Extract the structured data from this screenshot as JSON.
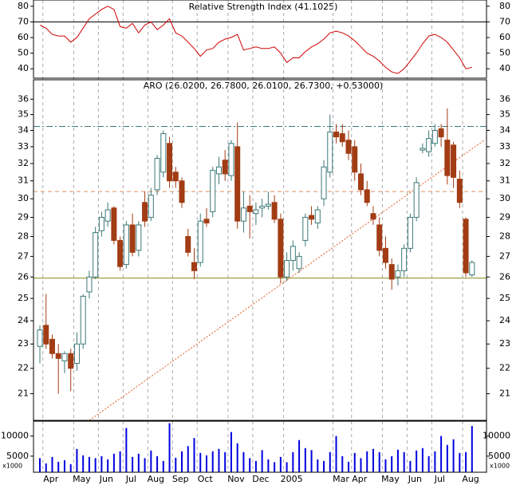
{
  "chart_data": [
    {
      "type": "line",
      "title": "Relative Strength Index (41.1025)",
      "series": [
        {
          "name": "RSI",
          "color": "#d00000",
          "values": [
            68,
            66,
            62,
            61,
            61,
            57,
            60,
            66,
            72,
            75,
            78,
            80,
            78,
            67,
            66,
            69,
            63,
            68,
            70,
            65,
            68,
            72,
            63,
            61,
            57,
            53,
            48,
            52,
            53,
            57,
            59,
            60,
            62,
            52,
            53,
            54,
            53,
            53,
            54,
            50,
            44,
            47,
            47,
            51,
            54,
            56,
            59,
            63,
            64,
            63,
            61,
            58,
            54,
            50,
            48,
            45,
            41,
            38,
            37,
            40,
            45,
            50,
            56,
            61,
            62,
            60,
            57,
            52,
            47,
            40,
            41
          ]
        }
      ],
      "ylim": [
        34,
        84
      ],
      "yticks": [
        40,
        50,
        60,
        70,
        80
      ],
      "hlines": [
        70
      ]
    },
    {
      "type": "candlestick",
      "title": "ARO (26.0200, 26.7800, 26.0100, 26.7300, +0.53000)",
      "up_color": "#3c7878",
      "down_color": "#a23c14",
      "ylog": true,
      "open": [
        22.9,
        23.8,
        23.2,
        22.6,
        22.3,
        22.6,
        22.2,
        23.0,
        25.3,
        26.0,
        28.3,
        28.8,
        29.5,
        27.8,
        26.6,
        28.6,
        27.3,
        29.8,
        29.0,
        30.5,
        31.5,
        33.2,
        31.5,
        31.0,
        28.0,
        26.7,
        26.7,
        28.9,
        29.3,
        31.4,
        32.2,
        31.3,
        33.0,
        28.8,
        29.6,
        29.2,
        29.5,
        29.6,
        29.8,
        28.9,
        26.0,
        26.8,
        26.4,
        27.8,
        29.1,
        28.7,
        30.0,
        31.5,
        33.9,
        33.8,
        33.4,
        33.0,
        31.4,
        30.5,
        29.2,
        28.6,
        27.4,
        26.6,
        26.0,
        26.3,
        27.4,
        29.0,
        32.8,
        32.7,
        33.2,
        34.1,
        33.4,
        33.1,
        31.1,
        28.9,
        26.1
      ],
      "high": [
        23.8,
        25.2,
        23.4,
        23.0,
        22.7,
        22.8,
        23.5,
        25.2,
        26.3,
        28.5,
        29.3,
        29.8,
        29.6,
        28.0,
        28.8,
        29.2,
        28.8,
        30.4,
        30.6,
        32.5,
        34.0,
        33.6,
        31.8,
        31.2,
        28.4,
        27.4,
        29.2,
        29.5,
        31.8,
        32.4,
        32.8,
        33.4,
        34.5,
        30.4,
        30.2,
        29.8,
        30.0,
        30.4,
        30.2,
        29.2,
        27.2,
        27.8,
        27.2,
        29.2,
        29.6,
        29.6,
        32.2,
        35.0,
        34.4,
        34.4,
        34.0,
        33.4,
        32.0,
        31.0,
        29.6,
        29.0,
        28.0,
        26.9,
        26.6,
        27.6,
        29.2,
        31.2,
        33.2,
        34.0,
        34.4,
        34.4,
        35.4,
        33.3,
        31.6,
        29.0,
        26.8
      ],
      "low": [
        22.2,
        22.8,
        22.4,
        21.0,
        21.8,
        21.1,
        21.9,
        22.8,
        25.0,
        25.9,
        28.0,
        28.5,
        27.6,
        26.3,
        26.4,
        27.0,
        27.0,
        28.5,
        28.8,
        30.2,
        31.2,
        30.6,
        30.6,
        29.5,
        27.0,
        25.9,
        26.5,
        28.5,
        29.0,
        30.8,
        31.0,
        31.0,
        28.4,
        28.2,
        27.9,
        28.6,
        29.0,
        29.4,
        28.7,
        25.7,
        25.8,
        26.3,
        26.2,
        27.5,
        28.6,
        28.4,
        29.6,
        31.2,
        33.2,
        33.0,
        32.2,
        31.0,
        30.2,
        29.6,
        28.6,
        27.0,
        26.4,
        25.4,
        25.6,
        26.0,
        27.2,
        28.8,
        32.6,
        32.4,
        33.0,
        33.0,
        30.8,
        30.6,
        29.5,
        26.0,
        26.0
      ],
      "close": [
        23.6,
        23.0,
        22.6,
        22.4,
        22.6,
        22.0,
        23.0,
        25.1,
        26.0,
        28.2,
        29.0,
        29.4,
        27.8,
        26.5,
        28.6,
        27.2,
        28.6,
        28.8,
        30.2,
        32.3,
        33.8,
        31.0,
        31.0,
        29.8,
        27.2,
        26.3,
        28.8,
        28.7,
        31.6,
        31.8,
        31.4,
        33.2,
        28.8,
        29.5,
        29.3,
        29.4,
        29.6,
        29.7,
        28.9,
        26.0,
        26.8,
        27.5,
        27.0,
        29.0,
        28.9,
        29.4,
        31.8,
        33.9,
        33.6,
        33.3,
        32.6,
        31.5,
        30.5,
        29.8,
        28.9,
        27.3,
        26.7,
        25.9,
        26.3,
        27.4,
        29.0,
        30.9,
        32.9,
        33.5,
        34.0,
        33.6,
        31.3,
        31.2,
        29.8,
        26.2,
        26.7
      ],
      "ylim": [
        20,
        37.3
      ],
      "yticks": [
        21,
        22,
        23,
        24,
        25,
        26,
        27,
        28,
        29,
        30,
        31,
        32,
        33,
        34,
        35,
        36
      ],
      "levels": [
        {
          "value": 34.25,
          "color": "#3c7878",
          "style": "dashdot"
        },
        {
          "value": 30.4,
          "color": "#e0905a",
          "style": "dashed"
        },
        {
          "value": 25.95,
          "color": "#8a8a20",
          "style": "solid"
        }
      ],
      "trendline": {
        "color": "#e06020",
        "x": [
          8,
          72
        ],
        "y": [
          20,
          33.4
        ]
      }
    },
    {
      "type": "bar",
      "unit_label": "x1000",
      "color": "#0000e0",
      "categories": [
        null,
        "Apr",
        null,
        null,
        null,
        null,
        "May",
        null,
        null,
        null,
        "Jun",
        null,
        null,
        null,
        "Jul",
        null,
        null,
        null,
        "Aug",
        null,
        null,
        null,
        "Sep",
        null,
        null,
        null,
        "Oct",
        null,
        null,
        null,
        null,
        "Nov",
        null,
        null,
        null,
        "Dec",
        null,
        null,
        null,
        null,
        "2005",
        null,
        null,
        null,
        null,
        null,
        null,
        null,
        "Mar",
        null,
        null,
        "Apr",
        null,
        null,
        null,
        null,
        "May",
        null,
        null,
        null,
        "Jun",
        null,
        null,
        null,
        "Jul",
        null,
        null,
        null,
        null,
        "Aug",
        null
      ],
      "values": [
        4500,
        3200,
        4800,
        3600,
        4000,
        3000,
        6800,
        5200,
        4800,
        4500,
        5000,
        4200,
        5600,
        6200,
        12000,
        4800,
        5600,
        4500,
        6400,
        5000,
        3800,
        13200,
        4600,
        6200,
        7500,
        9500,
        5800,
        5200,
        6200,
        6800,
        6000,
        11000,
        8200,
        6000,
        4500,
        3800,
        6500,
        4200,
        3500,
        4800,
        3500,
        6000,
        9000,
        7000,
        6500,
        4200,
        3800,
        6000,
        10000,
        5000,
        3600,
        5800,
        4500,
        6200,
        6800,
        6000,
        4200,
        5000,
        6600,
        6000,
        3800,
        6400,
        7000,
        5000,
        6200,
        10000,
        7800,
        9200,
        5800,
        6000,
        12500
      ],
      "ylim": [
        1000,
        13700
      ],
      "yticks": [
        5000,
        10000
      ]
    }
  ]
}
